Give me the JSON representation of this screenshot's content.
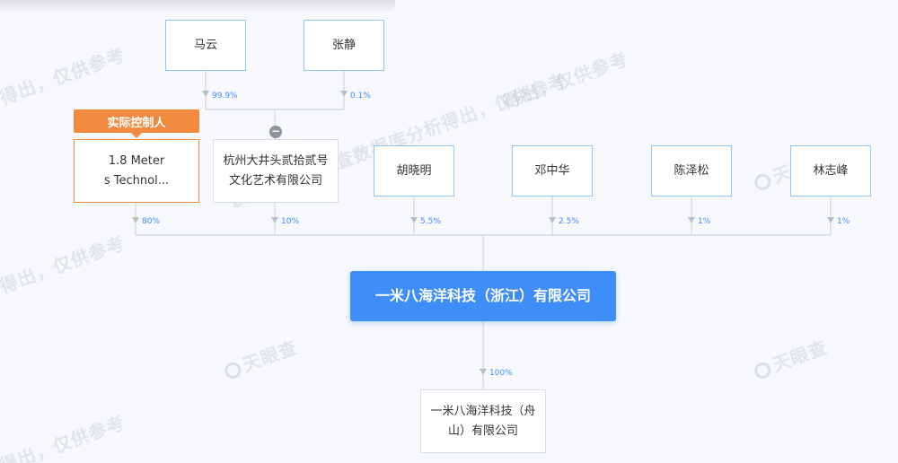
{
  "watermark": {
    "text1": "得出，仅供参考",
    "text2": "该信息由天眼查数据库分析得出，仅供参考",
    "brand": "天眼查"
  },
  "tags": {
    "actual_controller": "实际控制人"
  },
  "top_shareholders": [
    {
      "name": "马云",
      "pct": "99.9%"
    },
    {
      "name": "张静",
      "pct": "0.1%"
    }
  ],
  "shareholders": [
    {
      "name": "1.8 Meters Technol...",
      "line1": "1.8 Meter",
      "line2": "s Technol...",
      "pct": "80%"
    },
    {
      "name": "杭州大井头贰拾贰号文化艺术有限公司",
      "line1": "杭州大井头贰拾贰号",
      "line2": "文化艺术有限公司",
      "pct": "10%"
    },
    {
      "name": "胡晓明",
      "pct": "5.5%"
    },
    {
      "name": "邓中华",
      "pct": "2.5%"
    },
    {
      "name": "陈泽松",
      "pct": "1%"
    },
    {
      "name": "林志峰",
      "pct": "1%"
    }
  ],
  "main_company": {
    "name": "一米八海洋科技（浙江）有限公司"
  },
  "subsidiary": {
    "line1": "一米八海洋科技（舟",
    "line2": "山）有限公司",
    "pct": "100%"
  },
  "collapse_symbol": "−"
}
